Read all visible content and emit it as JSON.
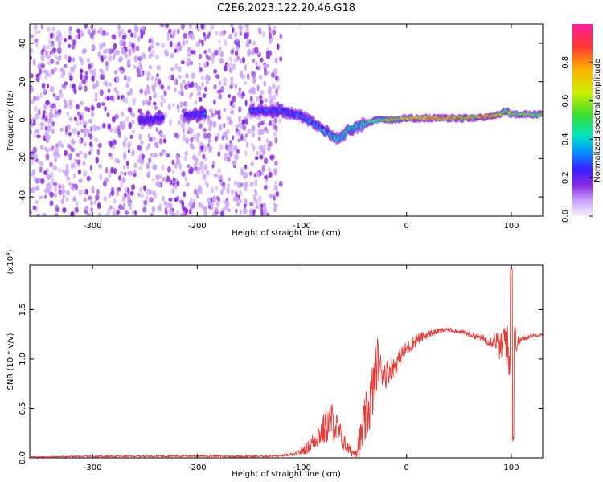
{
  "title": "C2E6.2023.122.20.46.G18",
  "colors": {
    "snr_line": "#e83a36",
    "colormap": [
      "#f4f0ff",
      "#c9a3ff",
      "#8a2be2",
      "#3b1bff",
      "#0099ff",
      "#00e5c0",
      "#33dd33",
      "#c8f000",
      "#ffb300",
      "#ff3b30",
      "#ff1aa0"
    ]
  },
  "chart_data": [
    {
      "type": "heatmap",
      "xlabel": "Height of straight line (km)",
      "ylabel": "Frequency (Hz)",
      "xlim": [
        -360,
        130
      ],
      "ylim": [
        -50,
        50
      ],
      "xticks": [
        -300,
        -200,
        -100,
        0,
        100
      ],
      "yticks": [
        -40,
        -20,
        0,
        20,
        40
      ],
      "xtick_labels": [
        "-300",
        "-200",
        "-100",
        "0",
        "100"
      ],
      "ytick_labels": [
        "-40",
        "-20",
        "0",
        "20",
        "40"
      ],
      "colorbar": {
        "label": "Normalized spectral amplitude",
        "range": [
          0,
          1
        ],
        "ticks": [
          0.0,
          0.2,
          0.4,
          0.6,
          0.8
        ],
        "tick_labels": [
          "0.0",
          "0.2",
          "0.4",
          "0.6",
          "0.8"
        ]
      },
      "ridge": {
        "x": [
          -250,
          -200,
          -140,
          -120,
          -100,
          -80,
          -65,
          -55,
          -45,
          -30,
          -15,
          0,
          20,
          40,
          60,
          80,
          90,
          95,
          100,
          130
        ],
        "frequency": [
          0,
          3,
          5,
          5,
          2,
          -5,
          -10,
          -5,
          -3,
          0,
          0,
          1,
          1,
          1,
          1,
          2,
          3,
          5,
          3,
          3
        ],
        "amplitude": [
          0.3,
          0.35,
          0.4,
          0.42,
          0.45,
          0.55,
          0.6,
          0.6,
          0.6,
          0.7,
          0.75,
          0.8,
          0.85,
          0.85,
          0.85,
          0.85,
          0.8,
          0.7,
          0.75,
          0.75
        ]
      },
      "noise_extent_x": [
        -360,
        -120
      ]
    },
    {
      "type": "line",
      "xlabel": "Height of straight line (km)",
      "ylabel": "SNR (10 * v/v)",
      "y_multiplier_label": "(x10",
      "y_multiplier_exp": "4",
      "y_multiplier_close": ")",
      "xlim": [
        -360,
        130
      ],
      "ylim": [
        0,
        1.95
      ],
      "xticks": [
        -300,
        -200,
        -100,
        0,
        100
      ],
      "yticks": [
        0.0,
        0.5,
        1.0,
        1.5
      ],
      "xtick_labels": [
        "-300",
        "-200",
        "-100",
        "0",
        "100"
      ],
      "ytick_labels": [
        "0.0",
        "0.5",
        "1.0",
        "1.5"
      ],
      "series": [
        {
          "x": [
            -360,
            -300,
            -200,
            -150,
            -120,
            -105,
            -95,
            -85,
            -78,
            -72,
            -68,
            -62,
            -58,
            -55,
            -50,
            -45,
            -40,
            -35,
            -30,
            -28,
            -25,
            -20,
            -15,
            -10,
            -5,
            0,
            10,
            20,
            30,
            40,
            50,
            60,
            70,
            80,
            85,
            90,
            95,
            98,
            100,
            102,
            105,
            110,
            120,
            130
          ],
          "y": [
            0.01,
            0.015,
            0.02,
            0.015,
            0.02,
            0.04,
            0.1,
            0.22,
            0.3,
            0.38,
            0.32,
            0.2,
            0.12,
            0.08,
            0.05,
            0.15,
            0.35,
            0.55,
            0.8,
            1.0,
            0.9,
            0.85,
            0.9,
            0.95,
            1.05,
            1.1,
            1.2,
            1.25,
            1.28,
            1.3,
            1.28,
            1.25,
            1.22,
            1.18,
            1.2,
            1.1,
            1.25,
            0.9,
            1.5,
            1.3,
            1.15,
            1.2,
            1.24,
            1.25
          ],
          "noise": [
            0.005,
            0.008,
            0.01,
            0.01,
            0.01,
            0.02,
            0.06,
            0.12,
            0.18,
            0.2,
            0.18,
            0.12,
            0.08,
            0.06,
            0.05,
            0.15,
            0.25,
            0.3,
            0.3,
            0.25,
            0.18,
            0.15,
            0.12,
            0.1,
            0.08,
            0.08,
            0.06,
            0.04,
            0.03,
            0.02,
            0.02,
            0.03,
            0.03,
            0.06,
            0.1,
            0.15,
            0.25,
            0.3,
            0.35,
            0.25,
            0.08,
            0.03,
            0.02,
            0.02
          ]
        }
      ]
    }
  ]
}
